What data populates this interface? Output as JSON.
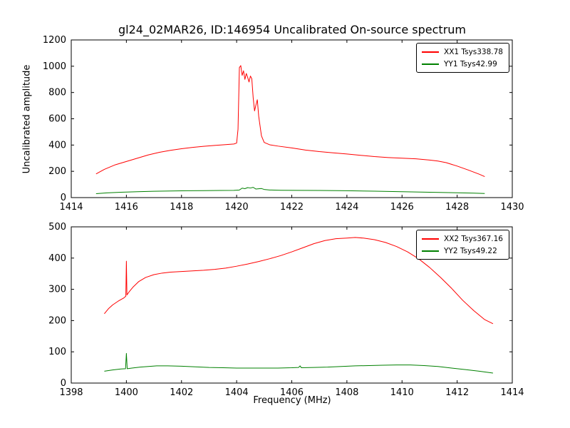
{
  "title": "gl24_02MAR26, ID:146954 Uncalibrated On-source spectrum",
  "chart_data": [
    {
      "type": "line",
      "xlabel": "",
      "ylabel": "Uncalibrated amplitude",
      "xlim": [
        1414,
        1430
      ],
      "ylim": [
        0,
        1200
      ],
      "xticks": [
        1414,
        1416,
        1418,
        1420,
        1422,
        1424,
        1426,
        1428,
        1430
      ],
      "yticks": [
        0,
        200,
        400,
        600,
        800,
        1000,
        1200
      ],
      "grid": false,
      "legend_position": "upper right",
      "series": [
        {
          "name": "XX1 Tsys338.78",
          "color": "#ff0000",
          "x": [
            1414.9,
            1415.2,
            1415.6,
            1416.0,
            1416.4,
            1416.8,
            1417.2,
            1417.6,
            1418.0,
            1418.4,
            1418.8,
            1419.2,
            1419.6,
            1419.9,
            1420.0,
            1420.05,
            1420.1,
            1420.15,
            1420.2,
            1420.25,
            1420.3,
            1420.35,
            1420.4,
            1420.45,
            1420.5,
            1420.55,
            1420.6,
            1420.65,
            1420.7,
            1420.75,
            1420.8,
            1420.9,
            1421.0,
            1421.2,
            1421.5,
            1422.0,
            1422.5,
            1423.0,
            1423.5,
            1424.0,
            1424.5,
            1425.0,
            1425.5,
            1426.0,
            1426.5,
            1427.0,
            1427.3,
            1427.6,
            1428.0,
            1428.4,
            1428.8,
            1429.0
          ],
          "y": [
            180,
            215,
            250,
            275,
            300,
            325,
            345,
            360,
            372,
            382,
            390,
            397,
            403,
            408,
            415,
            520,
            990,
            1005,
            930,
            965,
            900,
            945,
            915,
            880,
            925,
            905,
            760,
            660,
            705,
            745,
            620,
            470,
            420,
            402,
            392,
            378,
            362,
            350,
            341,
            332,
            322,
            312,
            305,
            300,
            295,
            286,
            278,
            266,
            240,
            210,
            178,
            160
          ]
        },
        {
          "name": "YY1 Tsys42.99",
          "color": "#008000",
          "x": [
            1414.9,
            1415.3,
            1415.8,
            1416.4,
            1417.0,
            1417.6,
            1418.2,
            1418.8,
            1419.4,
            1419.9,
            1420.1,
            1420.2,
            1420.3,
            1420.4,
            1420.5,
            1420.6,
            1420.7,
            1420.8,
            1420.9,
            1421.0,
            1421.2,
            1421.6,
            1422.2,
            1423.0,
            1424.0,
            1425.0,
            1426.0,
            1427.0,
            1428.0,
            1428.6,
            1429.0
          ],
          "y": [
            30,
            36,
            41,
            45,
            48,
            50,
            52,
            53,
            54,
            55,
            58,
            72,
            68,
            76,
            73,
            78,
            65,
            67,
            69,
            62,
            58,
            56,
            55,
            54,
            52,
            49,
            45,
            41,
            37,
            34,
            31
          ]
        }
      ]
    },
    {
      "type": "line",
      "xlabel": "Frequency (MHz)",
      "ylabel": "",
      "xlim": [
        1398,
        1414
      ],
      "ylim": [
        0,
        500
      ],
      "xticks": [
        1398,
        1400,
        1402,
        1404,
        1406,
        1408,
        1410,
        1412,
        1414
      ],
      "yticks": [
        0,
        100,
        200,
        300,
        400,
        500
      ],
      "grid": false,
      "legend_position": "upper right",
      "series": [
        {
          "name": "XX2 Tsys367.16",
          "color": "#ff0000",
          "x": [
            1399.2,
            1399.35,
            1399.5,
            1399.7,
            1399.9,
            1399.98,
            1400.0,
            1400.02,
            1400.1,
            1400.25,
            1400.45,
            1400.7,
            1401.0,
            1401.3,
            1401.6,
            1402.0,
            1402.4,
            1402.8,
            1403.2,
            1403.6,
            1404.0,
            1404.4,
            1404.8,
            1405.2,
            1405.6,
            1406.0,
            1406.4,
            1406.8,
            1407.2,
            1407.6,
            1408.0,
            1408.3,
            1408.6,
            1409.0,
            1409.4,
            1409.8,
            1410.2,
            1410.6,
            1411.0,
            1411.4,
            1411.8,
            1412.2,
            1412.6,
            1413.0,
            1413.3
          ],
          "y": [
            222,
            238,
            250,
            262,
            272,
            278,
            390,
            282,
            292,
            308,
            325,
            338,
            347,
            352,
            355,
            357,
            359,
            361,
            364,
            368,
            374,
            381,
            389,
            398,
            408,
            420,
            433,
            446,
            456,
            462,
            464,
            466,
            464,
            459,
            450,
            437,
            420,
            398,
            370,
            338,
            303,
            265,
            232,
            203,
            190
          ]
        },
        {
          "name": "YY2 Tsys49.22",
          "color": "#008000",
          "x": [
            1399.2,
            1399.5,
            1399.8,
            1399.97,
            1400.0,
            1400.03,
            1400.2,
            1400.5,
            1400.8,
            1401.1,
            1401.5,
            1402.0,
            1402.5,
            1403.0,
            1403.5,
            1404.0,
            1404.5,
            1405.0,
            1405.5,
            1406.0,
            1406.25,
            1406.3,
            1406.35,
            1406.8,
            1407.3,
            1407.8,
            1408.3,
            1408.8,
            1409.3,
            1409.8,
            1410.3,
            1410.8,
            1411.3,
            1411.8,
            1412.3,
            1412.8,
            1413.3
          ],
          "y": [
            38,
            42,
            45,
            46,
            95,
            46,
            48,
            51,
            53,
            55,
            55,
            54,
            52,
            50,
            49,
            48,
            48,
            48,
            48,
            49,
            50,
            55,
            49,
            50,
            51,
            53,
            55,
            56,
            57,
            58,
            58,
            56,
            53,
            48,
            43,
            38,
            32
          ]
        }
      ]
    }
  ],
  "layout": {
    "axes_color": "#000000",
    "background": "#ffffff"
  }
}
